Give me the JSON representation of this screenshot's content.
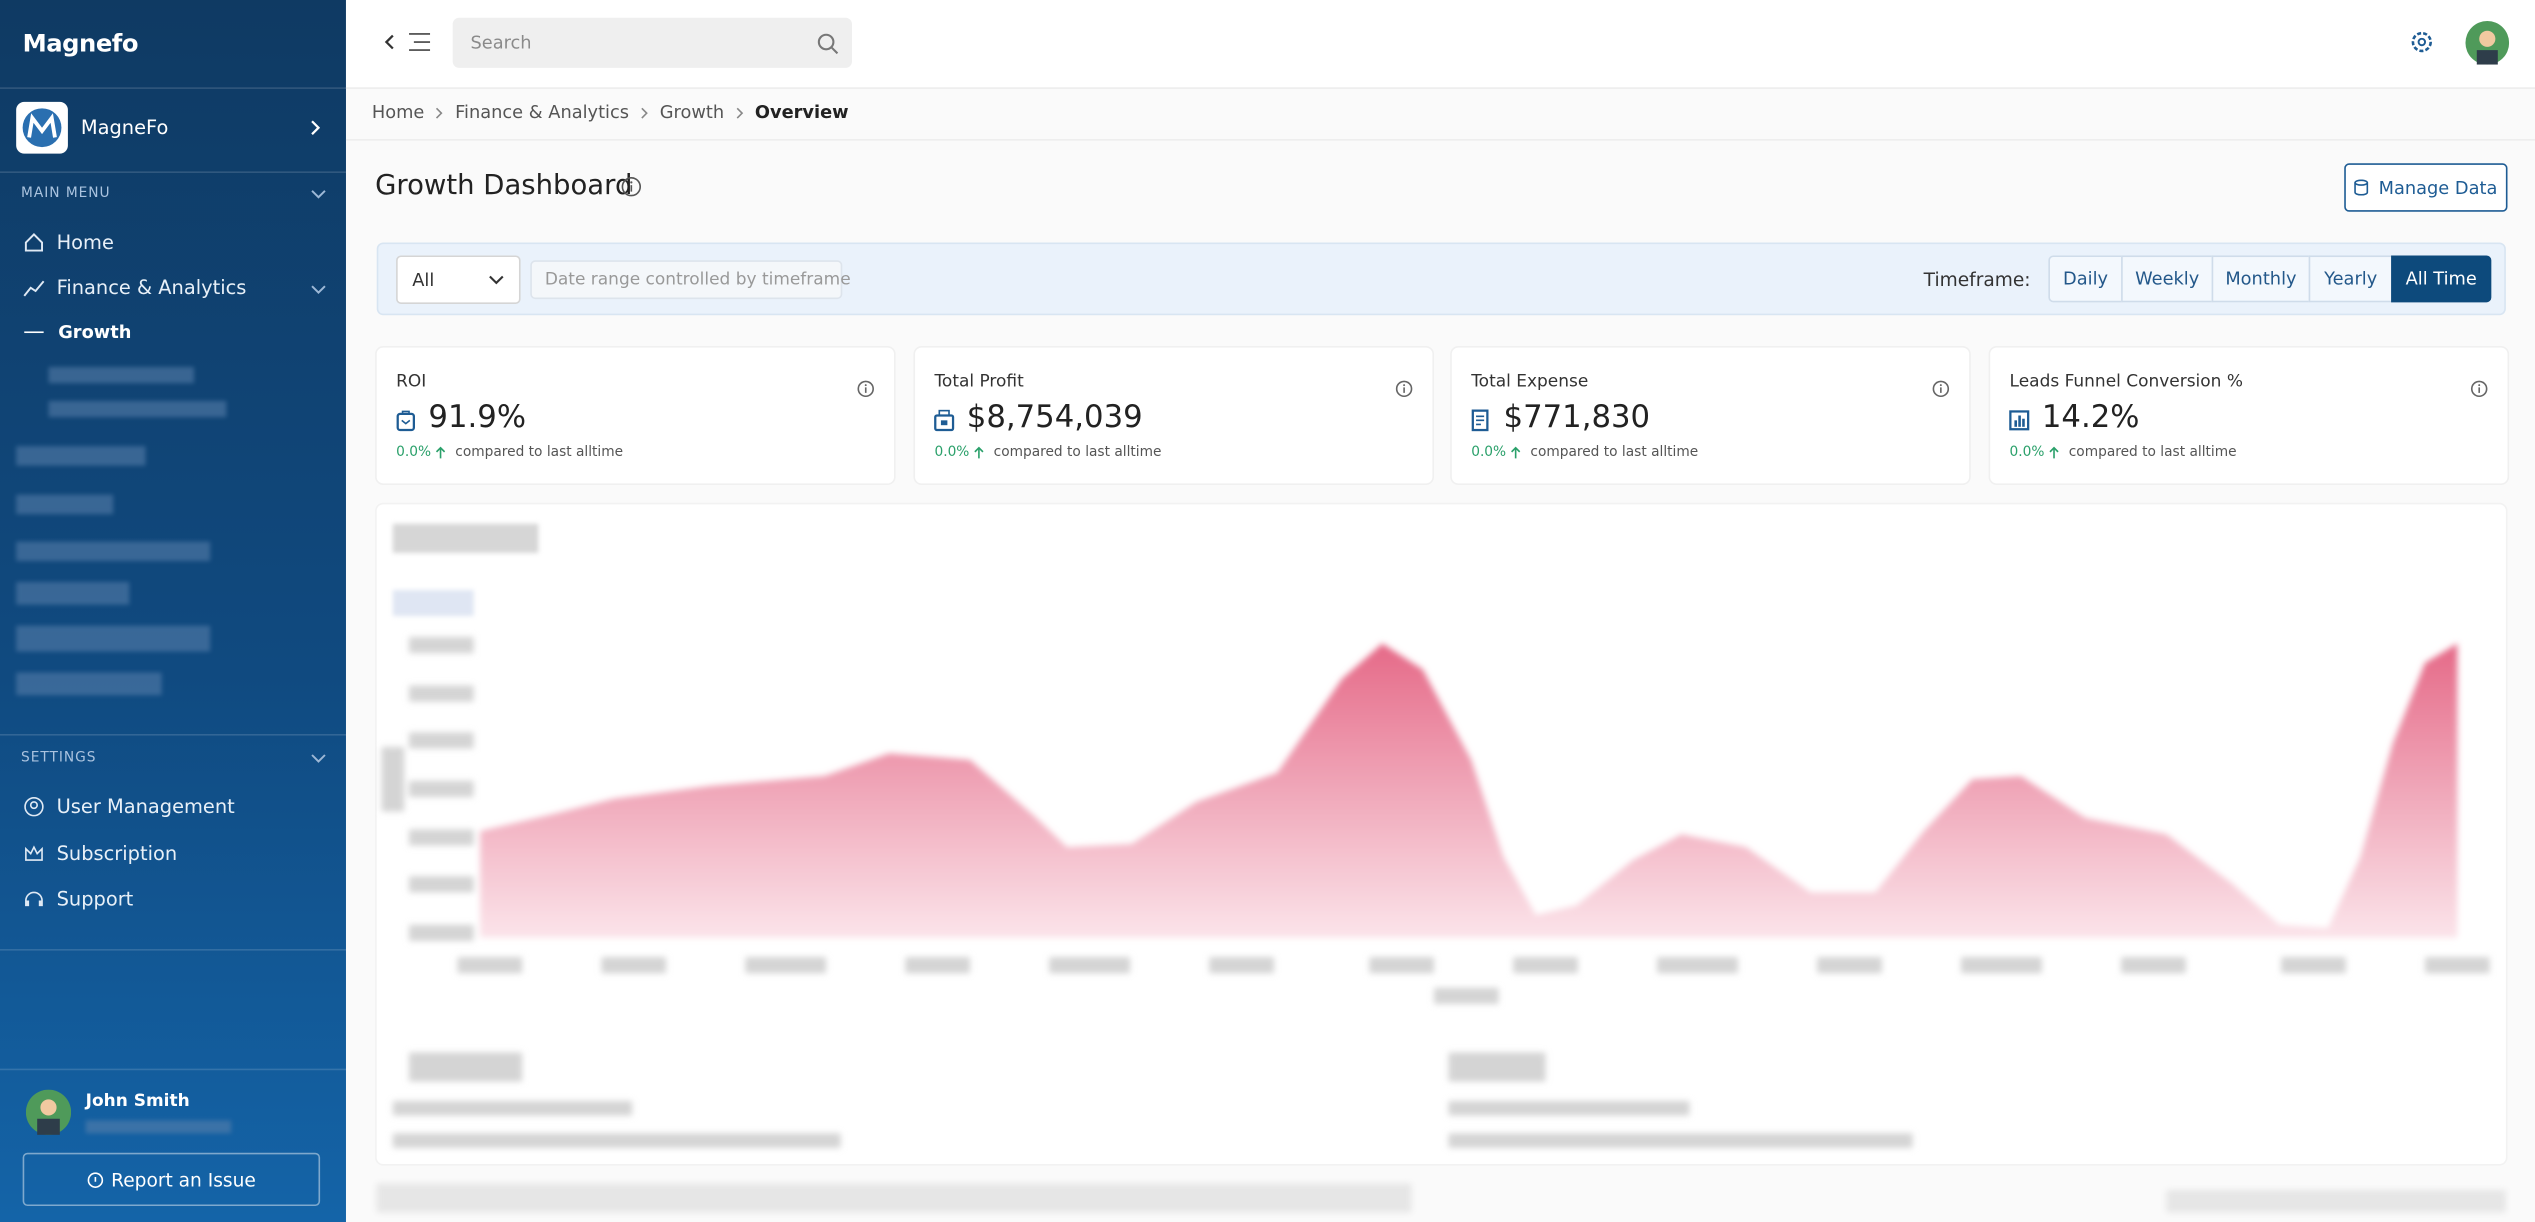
{
  "sidebar": {
    "brand": "Magnefo",
    "workspace": "MagneFo",
    "main_menu_label": "MAIN MENU",
    "main_menu": [
      "Home",
      "Finance & Analytics",
      "Growth"
    ],
    "settings_label": "SETTINGS",
    "settings_menu": [
      "User Management",
      "Subscription",
      "Support"
    ],
    "user_name": "John Smith",
    "report_button": "Report an Issue"
  },
  "topbar": {
    "search_placeholder": "Search"
  },
  "breadcrumb": [
    "Home",
    "Finance & Analytics",
    "Growth",
    "Overview"
  ],
  "header": {
    "title": "Growth Dashboard",
    "manage_button": "Manage Data"
  },
  "filters": {
    "select": "All",
    "date_placeholder": "Date range controlled by timeframe",
    "timeframe_label": "Timeframe:",
    "timeframes": [
      {
        "label": "Daily"
      },
      {
        "label": "Weekly"
      },
      {
        "label": "Monthly"
      },
      {
        "label": "Yearly"
      },
      {
        "label": "All Time",
        "active": true
      }
    ]
  },
  "kpis": [
    {
      "title": "ROI",
      "value": "91.9%",
      "change": "0.0%",
      "note": "compared to last alltime"
    },
    {
      "title": "Total Profit",
      "value": "$8,754,039",
      "change": "0.0%",
      "note": "compared to last alltime"
    },
    {
      "title": "Total Expense",
      "value": "$771,830",
      "change": "0.0%",
      "note": "compared to last alltime"
    },
    {
      "title": "Leads Funnel Conversion %",
      "value": "14.2%",
      "change": "0.0%",
      "note": "compared to last alltime"
    }
  ]
}
